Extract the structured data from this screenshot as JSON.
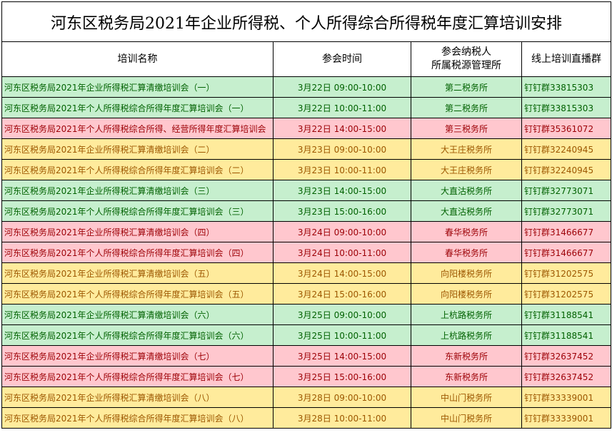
{
  "title": "河东区税务局2021年企业所得税、个人所得综合所得税年度汇算培训安排",
  "headers": {
    "name": "培训名称",
    "time": "参会时间",
    "office_line1": "参会纳税人",
    "office_line2": "所属税源管理所",
    "group": "线上培训直播群"
  },
  "colors": {
    "green": "#c6efce",
    "red": "#ffc7ce",
    "yellow": "#ffeb9c"
  },
  "rows": [
    {
      "name": "河东区税务局2021年企业所得税汇算清缴培训会（一）",
      "time": "3月22日  09:00-10:00",
      "office": "第二税务所",
      "group": "钉钉群33815303",
      "color": "green"
    },
    {
      "name": "河东区税务局2021年个人所得税综合所得年度汇算培训会（一）",
      "time": "3月22日  10:00-11:00",
      "office": "第二税务所",
      "group": "钉钉群33815303",
      "color": "green"
    },
    {
      "name": "河东区税务局2021年个人所得税综合所得、经营所得年度汇算培训会",
      "time": "3月22日  14:00-15:00",
      "office": "第三税务所",
      "group": "钉钉群35361072",
      "color": "red"
    },
    {
      "name": "河东区税务局2021年企业所得税汇算清缴培训会（二）",
      "time": "3月23日  09:00-10:00",
      "office": "大王庄税务所",
      "group": "钉钉群32240945",
      "color": "yellow"
    },
    {
      "name": "河东区税务局2021年个人所得税综合所得年度汇算培训会（二）",
      "time": "3月23日  10:00-11:00",
      "office": "大王庄税务所",
      "group": "钉钉群32240945",
      "color": "yellow"
    },
    {
      "name": "河东区税务局2021年企业所得税汇算清缴培训会（三）",
      "time": "3月23日  14:00-15:00",
      "office": "大直沽税务所",
      "group": "钉钉群32773071",
      "color": "green"
    },
    {
      "name": "河东区税务局2021年个人所得税综合所得年度汇算培训会（三）",
      "time": "3月23日  15:00-16:00",
      "office": "大直沽税务所",
      "group": "钉钉群32773071",
      "color": "green"
    },
    {
      "name": "河东区税务局2021年企业所得税汇算清缴培训会（四）",
      "time": "3月24日  09:00-10:00",
      "office": "春华税务所",
      "group": "钉钉群31466677",
      "color": "red"
    },
    {
      "name": "河东区税务局2021年个人所得税综合所得年度汇算培训会（四）",
      "time": "3月24日  10:00-11:00",
      "office": "春华税务所",
      "group": "钉钉群31466677",
      "color": "red"
    },
    {
      "name": "河东区税务局2021年企业所得税汇算清缴培训会（五）",
      "time": "3月24日  14:00-15:00",
      "office": "向阳楼税务所",
      "group": "钉钉群31202575",
      "color": "yellow"
    },
    {
      "name": "河东区税务局2021年个人所得税综合所得年度汇算培训会（五）",
      "time": "3月24日  15:00-16:00",
      "office": "向阳楼税务所",
      "group": "钉钉群31202575",
      "color": "yellow"
    },
    {
      "name": "河东区税务局2021年企业所得税汇算清缴培训会（六）",
      "time": "3月25日  09:00-10:00",
      "office": "上杭路税务所",
      "group": "钉钉群31188541",
      "color": "green"
    },
    {
      "name": "河东区税务局2021年个人所得税综合所得年度汇算培训会（六）",
      "time": "3月25日  10:00-11:00",
      "office": "上杭路税务所",
      "group": "钉钉群31188541",
      "color": "green"
    },
    {
      "name": "河东区税务局2021年企业所得税汇算清缴培训会（七）",
      "time": "3月25日  14:00-15:00",
      "office": "东新税务所",
      "group": "钉钉群32637452",
      "color": "red"
    },
    {
      "name": "河东区税务局2021年个人所得税综合所得年度汇算培训会（七）",
      "time": "3月25日  15:00-16:00",
      "office": "东新税务所",
      "group": "钉钉群32637452",
      "color": "red"
    },
    {
      "name": "河东区税务局2021年企业所得税汇算清缴培训会（八）",
      "time": "3月28日  09:00-10:00",
      "office": "中山门税务所",
      "group": "钉钉群33339001",
      "color": "yellow"
    },
    {
      "name": "河东区税务局2021年个人所得税综合所得年度汇算培训会（八）",
      "time": "3月28日  10:00-11:00",
      "office": "中山门税务所",
      "group": "钉钉群33339001",
      "color": "yellow"
    }
  ]
}
